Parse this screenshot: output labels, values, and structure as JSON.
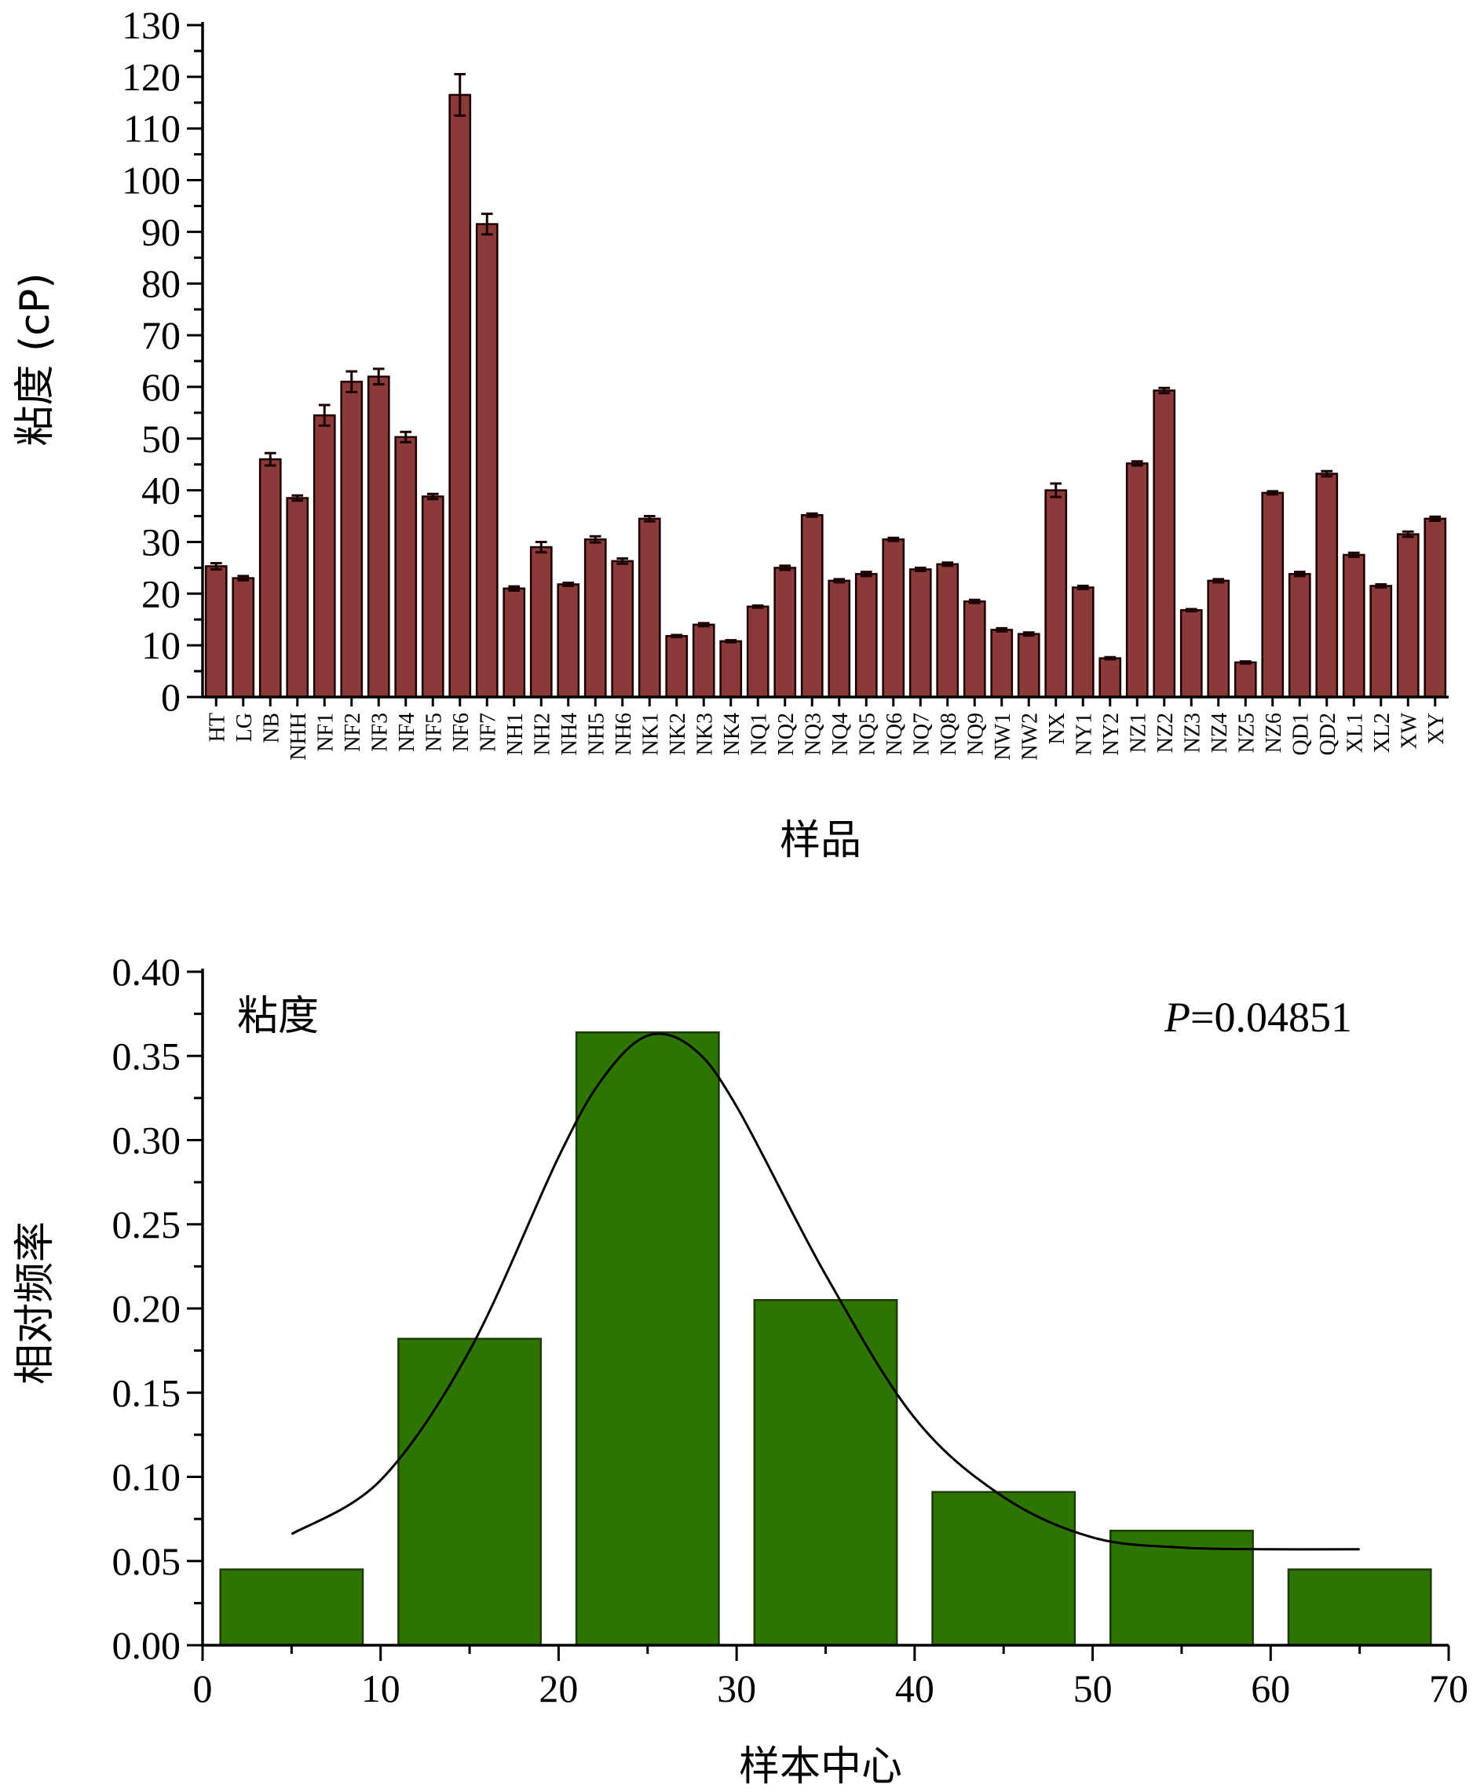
{
  "chart_data": [
    {
      "type": "bar",
      "ylabel": "粘度 (cP)",
      "xlabel": "样品",
      "ylim": [
        0,
        130
      ],
      "yticks": [
        0,
        10,
        20,
        30,
        40,
        50,
        60,
        70,
        80,
        90,
        100,
        110,
        120,
        130
      ],
      "grid": false,
      "bar_color": "#8B3A3A",
      "error_color": "#1a0000",
      "categories": [
        "HT",
        "LG",
        "NB",
        "NHH",
        "NF1",
        "NF2",
        "NF3",
        "NF4",
        "NF5",
        "NF6",
        "NF7",
        "NH1",
        "NH2",
        "NH4",
        "NH5",
        "NH6",
        "NK1",
        "NK2",
        "NK3",
        "NK4",
        "NQ1",
        "NQ2",
        "NQ3",
        "NQ4",
        "NQ5",
        "NQ6",
        "NQ7",
        "NQ8",
        "NQ9",
        "NW1",
        "NW2",
        "NX",
        "NY1",
        "NY2",
        "NZ1",
        "NZ2",
        "NZ3",
        "NZ4",
        "NZ5",
        "NZ6",
        "QD1",
        "QD2",
        "XL1",
        "XL2",
        "XW",
        "XY"
      ],
      "values": [
        25.3,
        23.0,
        46.0,
        38.5,
        54.5,
        61.0,
        62.0,
        50.3,
        38.8,
        116.5,
        91.5,
        21.0,
        29.0,
        21.8,
        30.5,
        26.3,
        34.5,
        11.8,
        14.0,
        10.8,
        17.5,
        25.0,
        35.2,
        22.5,
        23.8,
        30.5,
        24.7,
        25.7,
        18.5,
        13.0,
        12.2,
        40.0,
        21.2,
        7.5,
        45.2,
        59.3,
        16.8,
        22.5,
        6.7,
        39.5,
        23.8,
        43.2,
        27.5,
        21.5,
        31.5,
        34.5
      ],
      "errors": [
        0.6,
        0.4,
        1.2,
        0.5,
        2.0,
        2.0,
        1.5,
        1.0,
        0.5,
        4.0,
        2.0,
        0.4,
        1.0,
        0.3,
        0.6,
        0.5,
        0.5,
        0.2,
        0.3,
        0.2,
        0.2,
        0.4,
        0.3,
        0.3,
        0.4,
        0.3,
        0.3,
        0.3,
        0.3,
        0.3,
        0.3,
        1.3,
        0.3,
        0.2,
        0.4,
        0.5,
        0.2,
        0.3,
        0.2,
        0.3,
        0.4,
        0.5,
        0.4,
        0.3,
        0.5,
        0.4
      ]
    },
    {
      "type": "bar",
      "ylabel": "相对频率",
      "xlabel": "样本中心",
      "xlim": [
        0,
        70
      ],
      "ylim": [
        0,
        0.4
      ],
      "xticks": [
        0,
        10,
        20,
        30,
        40,
        50,
        60,
        70
      ],
      "yticks": [
        0.0,
        0.05,
        0.1,
        0.15,
        0.2,
        0.25,
        0.3,
        0.35,
        0.4
      ],
      "grid": false,
      "bar_color": "#2D7500",
      "bins": [
        {
          "start": 1,
          "end": 9,
          "value": 0.045
        },
        {
          "start": 11,
          "end": 19,
          "value": 0.182
        },
        {
          "start": 21,
          "end": 29,
          "value": 0.364
        },
        {
          "start": 31,
          "end": 39,
          "value": 0.205
        },
        {
          "start": 41,
          "end": 49,
          "value": 0.091
        },
        {
          "start": 51,
          "end": 59,
          "value": 0.068
        },
        {
          "start": 61,
          "end": 69,
          "value": 0.045
        }
      ],
      "fit_curve": {
        "type": "line",
        "x": [
          5,
          10,
          15,
          20,
          22.5,
          25,
          27.5,
          30,
          35,
          40,
          45,
          50,
          55,
          60,
          65
        ],
        "y": [
          0.066,
          0.098,
          0.175,
          0.29,
          0.337,
          0.362,
          0.355,
          0.32,
          0.22,
          0.135,
          0.088,
          0.064,
          0.058,
          0.057,
          0.057
        ]
      },
      "annotations": {
        "label": "粘度",
        "p_symbol": "P",
        "p_rest": "=0.04851"
      }
    }
  ]
}
